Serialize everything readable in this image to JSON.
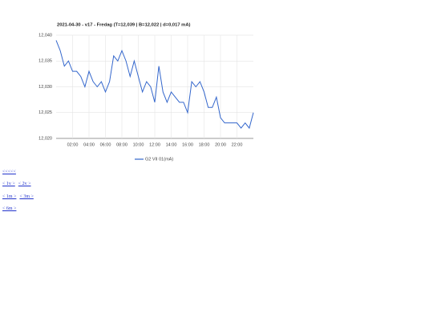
{
  "chart_data": {
    "type": "line",
    "title": "2021-04-30 - v17 - Fredag (T=12,039 | B=12,022 | d=0,017 mA)",
    "x": [
      0,
      0.5,
      1,
      1.5,
      2,
      2.5,
      3,
      3.5,
      4,
      4.5,
      5,
      5.5,
      6,
      6.5,
      7,
      7.5,
      8,
      8.5,
      9,
      9.5,
      10,
      10.5,
      11,
      11.5,
      12,
      12.5,
      13,
      13.5,
      14,
      14.5,
      15,
      15.5,
      16,
      16.5,
      17,
      17.5,
      18,
      18.5,
      19,
      19.5,
      20,
      20.5,
      21,
      21.5,
      22,
      22.5,
      23,
      23.5,
      24
    ],
    "series": [
      {
        "name": "G2 VII 01(mA)",
        "color": "#3366cc",
        "values": [
          12.039,
          12.037,
          12.034,
          12.035,
          12.033,
          12.033,
          12.032,
          12.03,
          12.033,
          12.031,
          12.03,
          12.031,
          12.029,
          12.031,
          12.036,
          12.035,
          12.037,
          12.035,
          12.032,
          12.035,
          12.032,
          12.029,
          12.031,
          12.03,
          12.027,
          12.034,
          12.029,
          12.027,
          12.029,
          12.028,
          12.027,
          12.027,
          12.025,
          12.031,
          12.03,
          12.031,
          12.029,
          12.026,
          12.026,
          12.028,
          12.024,
          12.023,
          12.023,
          12.023,
          12.023,
          12.022,
          12.023,
          12.022,
          12.025
        ]
      }
    ],
    "xlim": [
      0,
      24
    ],
    "xticks": [
      {
        "value": 2,
        "label": "02:00"
      },
      {
        "value": 4,
        "label": "04:00"
      },
      {
        "value": 6,
        "label": "06:00"
      },
      {
        "value": 8,
        "label": "08:00"
      },
      {
        "value": 10,
        "label": "10:00"
      },
      {
        "value": 12,
        "label": "12:00"
      },
      {
        "value": 14,
        "label": "14:00"
      },
      {
        "value": 16,
        "label": "16:00"
      },
      {
        "value": 18,
        "label": "18:00"
      },
      {
        "value": 20,
        "label": "20:00"
      },
      {
        "value": 22,
        "label": "22:00"
      }
    ],
    "ylim": [
      12.02,
      12.04
    ],
    "yticks": [
      {
        "value": 12.02,
        "label": "12,020"
      },
      {
        "value": 12.025,
        "label": "12,025"
      },
      {
        "value": 12.03,
        "label": "12,030"
      },
      {
        "value": 12.035,
        "label": "12,035"
      },
      {
        "value": 12.04,
        "label": "12,040"
      }
    ],
    "grid": true
  },
  "links": [
    [
      "<<<<<"
    ],
    [
      "< 1v >",
      "< 2v >"
    ],
    [
      "< 1m >",
      "< 3m >"
    ],
    [
      "< 6m >"
    ]
  ]
}
